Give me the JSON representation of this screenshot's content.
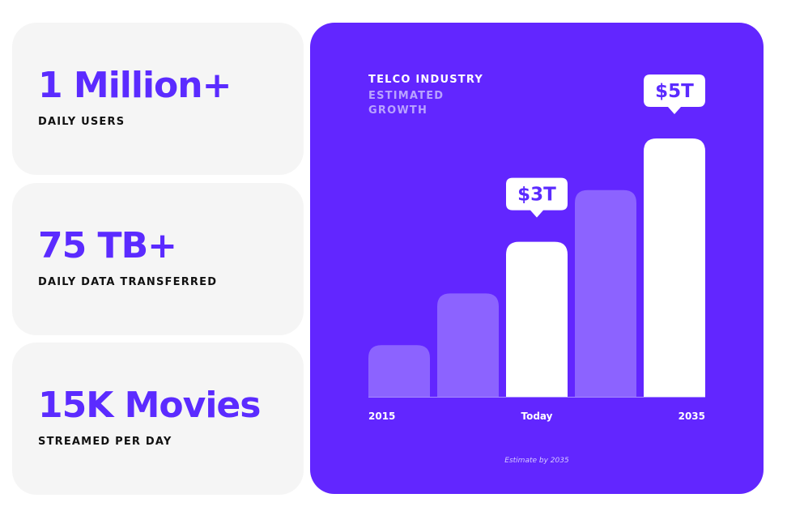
{
  "stats": [
    {
      "value": "1 Million+",
      "label": "DAILY USERS"
    },
    {
      "value": "75 TB+",
      "label": "DAILY DATA TRANSFERRED"
    },
    {
      "value": "15K Movies",
      "label": "STREAMED PER DAY"
    }
  ],
  "chart_data": {
    "type": "bar",
    "title": "TELCO INDUSTRY",
    "subtitle": "ESTIMATED GROWTH",
    "categories": [
      "2015",
      null,
      "Today",
      null,
      "2035"
    ],
    "values": [
      1,
      2,
      3,
      4,
      5
    ],
    "value_labels": [
      null,
      null,
      "$3T",
      null,
      "$5T"
    ],
    "colors": [
      "#8c63ff",
      "#8c63ff",
      "#ffffff",
      "#8c63ff",
      "#ffffff"
    ],
    "note": "Estimate by 2035"
  }
}
